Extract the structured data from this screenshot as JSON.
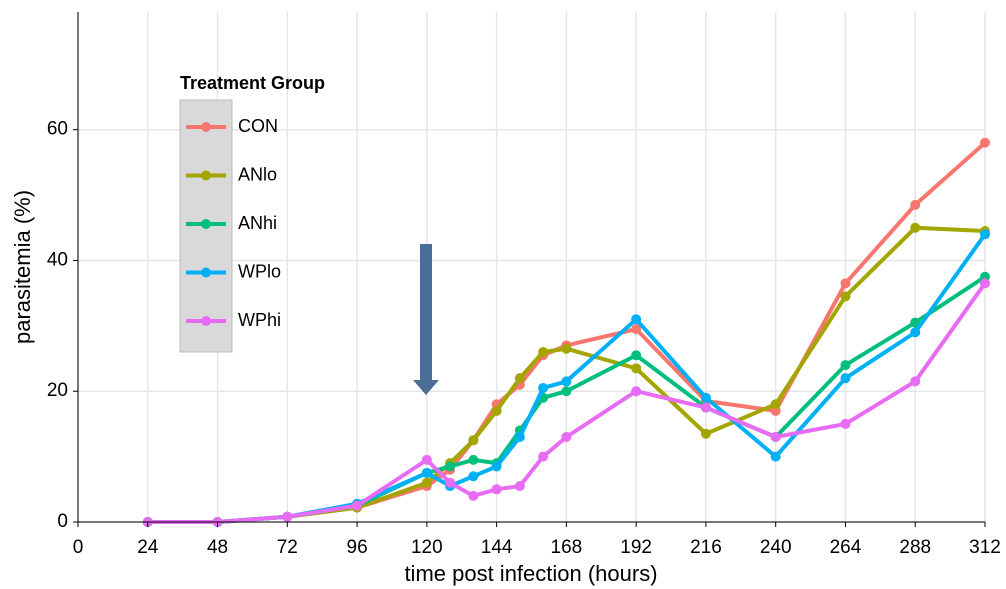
{
  "chart_data": {
    "type": "line",
    "x_label": "time post infection (hours)",
    "y_label": "parasitemia (%)",
    "legend_title": "Treatment Group",
    "legend_position": "top-left",
    "grid": true,
    "xlim": [
      0,
      312
    ],
    "xticks": [
      0,
      24,
      48,
      72,
      96,
      120,
      144,
      168,
      192,
      216,
      240,
      264,
      288,
      312
    ],
    "ylim": [
      0,
      78
    ],
    "yticks": [
      0,
      20,
      40,
      60
    ],
    "x": [
      24,
      48,
      72,
      96,
      120,
      128,
      136,
      144,
      152,
      160,
      168,
      192,
      216,
      240,
      264,
      288,
      312
    ],
    "series": [
      {
        "name": "CON",
        "color": "#f8766d",
        "values": [
          0,
          0,
          0.8,
          2.2,
          5.5,
          8,
          12.5,
          18,
          21,
          25.5,
          27,
          29.5,
          18.5,
          17,
          36.5,
          48.5,
          58
        ]
      },
      {
        "name": "ANlo",
        "color": "#a3a500",
        "values": [
          0,
          0,
          0.8,
          2.2,
          6,
          9,
          12.5,
          17,
          22,
          26,
          26.5,
          23.5,
          13.5,
          18,
          34.5,
          45,
          44.5
        ]
      },
      {
        "name": "ANhi",
        "color": "#00bf7d",
        "values": [
          0,
          0,
          0.8,
          2.5,
          7.5,
          8.5,
          9.5,
          9,
          14,
          19,
          20,
          25.5,
          17.5,
          13,
          24,
          30.5,
          37.5
        ]
      },
      {
        "name": "WPlo",
        "color": "#00b0f6",
        "values": [
          0,
          0,
          0.8,
          2.8,
          7.5,
          5.5,
          7,
          8.5,
          13,
          20.5,
          21.5,
          31,
          19,
          10,
          22,
          29,
          44
        ]
      },
      {
        "name": "WPhi",
        "color": "#e76bf3",
        "values": [
          0,
          0,
          0.8,
          2.5,
          9.5,
          6,
          4,
          5,
          5.5,
          10,
          13,
          20,
          17.5,
          13,
          15,
          21.5,
          36.5
        ]
      }
    ]
  }
}
